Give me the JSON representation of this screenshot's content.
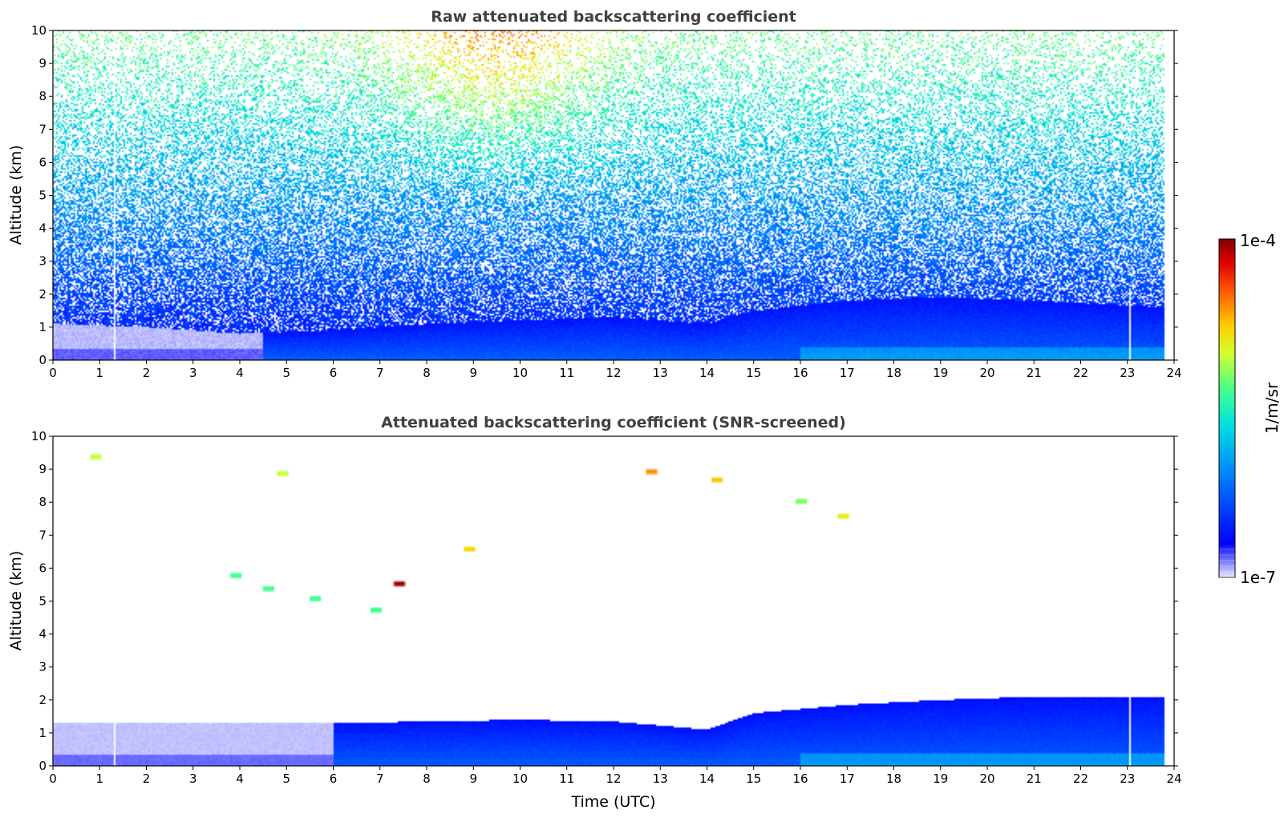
{
  "chart_data": [
    {
      "type": "heatmap",
      "title": "Raw attenuated backscattering coefficient",
      "xlabel": "",
      "ylabel": "Altitude (km)",
      "xlim": [
        0,
        24
      ],
      "ylim": [
        0,
        10
      ],
      "x_ticks": [
        "0",
        "1",
        "2",
        "3",
        "4",
        "5",
        "6",
        "7",
        "8",
        "9",
        "10",
        "11",
        "12",
        "13",
        "14",
        "15",
        "16",
        "17",
        "18",
        "19",
        "20",
        "21",
        "22",
        "23",
        "24"
      ],
      "y_ticks": [
        "0",
        "1",
        "2",
        "3",
        "4",
        "5",
        "6",
        "7",
        "8",
        "9",
        "10"
      ],
      "data_end_time": 23.8,
      "boundary_layer_top_km": [
        {
          "x": 0,
          "y": 1.1
        },
        {
          "x": 2,
          "y": 1.0
        },
        {
          "x": 4,
          "y": 0.8
        },
        {
          "x": 6,
          "y": 0.9
        },
        {
          "x": 8,
          "y": 1.1
        },
        {
          "x": 10,
          "y": 1.2
        },
        {
          "x": 12,
          "y": 1.3
        },
        {
          "x": 14,
          "y": 1.1
        },
        {
          "x": 15,
          "y": 1.5
        },
        {
          "x": 17,
          "y": 1.8
        },
        {
          "x": 19,
          "y": 1.9
        },
        {
          "x": 21,
          "y": 1.8
        },
        {
          "x": 23.8,
          "y": 1.6
        }
      ],
      "colorbar": {
        "label": "1/m/sr",
        "min_label": "1e-7",
        "max_label": "1e-4",
        "scale": "log",
        "colormap": "jet"
      }
    },
    {
      "type": "heatmap",
      "title": "Attenuated backscattering coefficient (SNR-screened)",
      "xlabel": "Time (UTC)",
      "ylabel": "Altitude (km)",
      "xlim": [
        0,
        24
      ],
      "ylim": [
        0,
        10
      ],
      "x_ticks": [
        "0",
        "1",
        "2",
        "3",
        "4",
        "5",
        "6",
        "7",
        "8",
        "9",
        "10",
        "11",
        "12",
        "13",
        "14",
        "15",
        "16",
        "17",
        "18",
        "19",
        "20",
        "21",
        "22",
        "23",
        "24"
      ],
      "y_ticks": [
        "0",
        "1",
        "2",
        "3",
        "4",
        "5",
        "6",
        "7",
        "8",
        "9",
        "10"
      ],
      "data_end_time": 23.8,
      "boundary_layer_top_km": [
        {
          "x": 0,
          "y": 1.3
        },
        {
          "x": 6,
          "y": 1.3
        },
        {
          "x": 8,
          "y": 1.35
        },
        {
          "x": 10,
          "y": 1.4
        },
        {
          "x": 12,
          "y": 1.35
        },
        {
          "x": 14,
          "y": 1.1
        },
        {
          "x": 15,
          "y": 1.6
        },
        {
          "x": 17,
          "y": 1.85
        },
        {
          "x": 19,
          "y": 2.0
        },
        {
          "x": 21,
          "y": 2.1
        },
        {
          "x": 23.8,
          "y": 2.1
        }
      ],
      "aerosol_patches": [
        {
          "x": 3.9,
          "y": 5.8,
          "level": 0.55
        },
        {
          "x": 4.6,
          "y": 5.4,
          "level": 0.55
        },
        {
          "x": 5.6,
          "y": 5.1,
          "level": 0.55
        },
        {
          "x": 6.9,
          "y": 4.75,
          "level": 0.55
        },
        {
          "x": 7.4,
          "y": 5.55,
          "level": 0.98
        },
        {
          "x": 8.9,
          "y": 6.6,
          "level": 0.72
        },
        {
          "x": 4.9,
          "y": 8.9,
          "level": 0.65
        },
        {
          "x": 12.8,
          "y": 8.95,
          "level": 0.8
        },
        {
          "x": 14.2,
          "y": 8.7,
          "level": 0.75
        },
        {
          "x": 16.0,
          "y": 8.05,
          "level": 0.6
        },
        {
          "x": 16.9,
          "y": 7.6,
          "level": 0.7
        },
        {
          "x": 0.9,
          "y": 9.4,
          "level": 0.65
        }
      ],
      "colorbar": {
        "label": "1/m/sr",
        "min_label": "1e-7",
        "max_label": "1e-4",
        "scale": "log",
        "colormap": "jet"
      }
    }
  ]
}
